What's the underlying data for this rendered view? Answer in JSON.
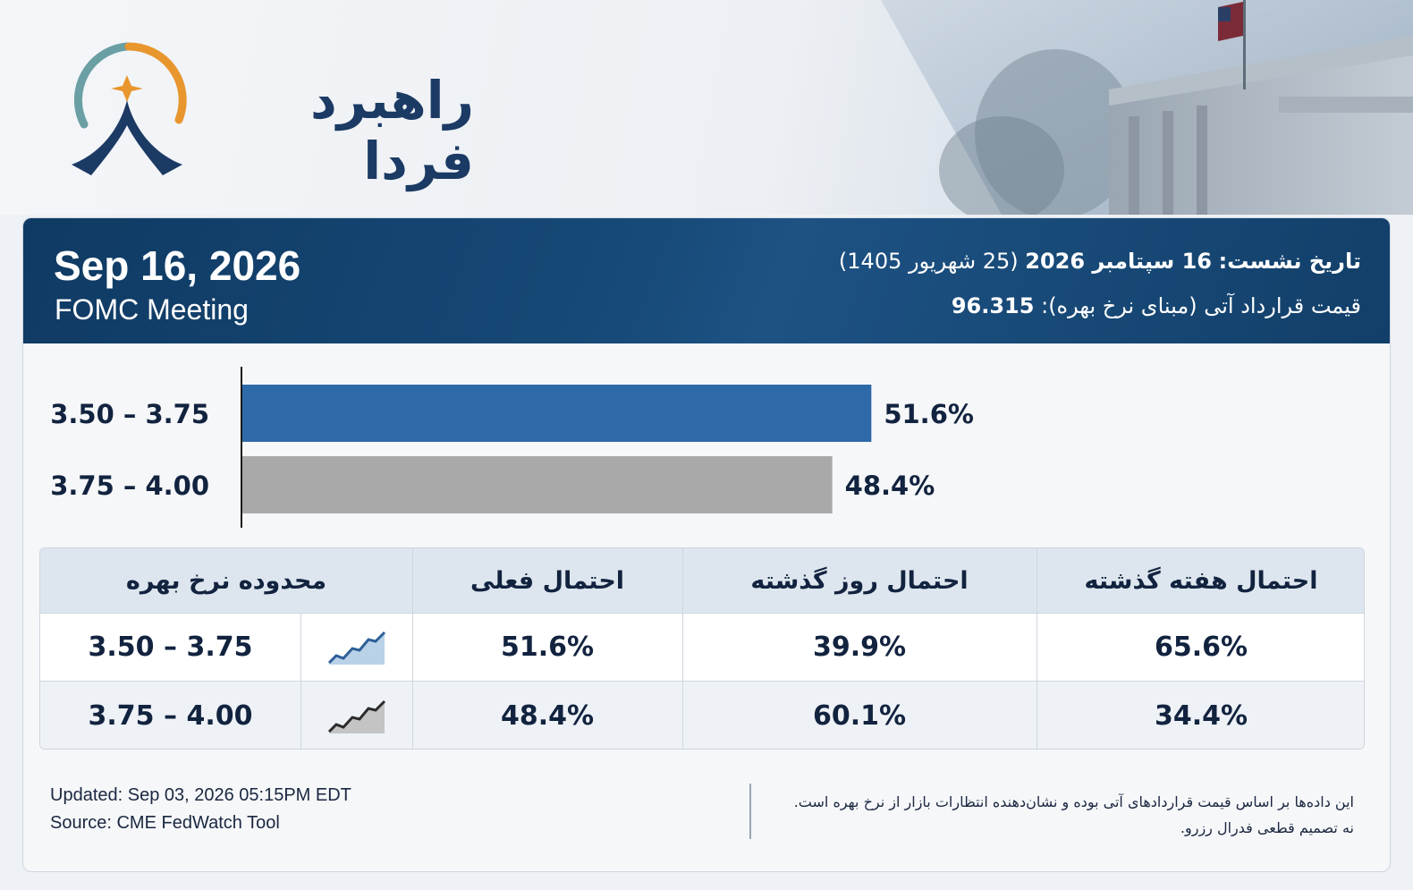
{
  "brand": {
    "name": "راهبرد فردا",
    "colors": {
      "navy": "#1b3a64",
      "teal": "#6a9fa3",
      "orange": "#e8962e"
    }
  },
  "header": {
    "date": "Sep 16, 2026",
    "subtitle": "FOMC Meeting",
    "meeting_label": "تاریخ نشست:",
    "meeting_value": "16 سپتامبر 2026",
    "meeting_persian": "(25 شهریور 1405)",
    "futures_label": "قیمت قرارداد آتی (مبنای نرخ بهره):",
    "futures_value": "96.315"
  },
  "chart_data": {
    "type": "bar",
    "orientation": "horizontal",
    "categories": [
      "3.50 – 3.75",
      "3.75 – 4.00"
    ],
    "values": [
      51.6,
      48.4
    ],
    "value_labels": [
      "51.6%",
      "48.4%"
    ],
    "colors": [
      "#2e6aa8",
      "#a9a9a9"
    ],
    "xlim": [
      0,
      100
    ]
  },
  "table": {
    "headers": {
      "range": "محدوده نرخ بهره",
      "current": "احتمال فعلی",
      "yesterday": "احتمال روز گذشته",
      "last_week": "احتمال هفته گذشته"
    },
    "rows": [
      {
        "range": "3.50 – 3.75",
        "trend_icon": "sparkline-up-blue-icon",
        "current": "51.6%",
        "yesterday": "39.9%",
        "last_week": "65.6%"
      },
      {
        "range": "3.75 – 4.00",
        "trend_icon": "sparkline-up-gray-icon",
        "current": "48.4%",
        "yesterday": "60.1%",
        "last_week": "34.4%"
      }
    ]
  },
  "footer": {
    "updated": "Updated: Sep 03, 2026 05:15PM EDT",
    "source": "Source: CME FedWatch Tool",
    "note_line1": "این داده‌ها بر اساس قیمت قراردادهای آتی بوده و نشان‌دهنده انتظارات بازار از نرخ بهره است.",
    "note_line2": "نه تصمیم قطعی فدرال رزرو."
  }
}
